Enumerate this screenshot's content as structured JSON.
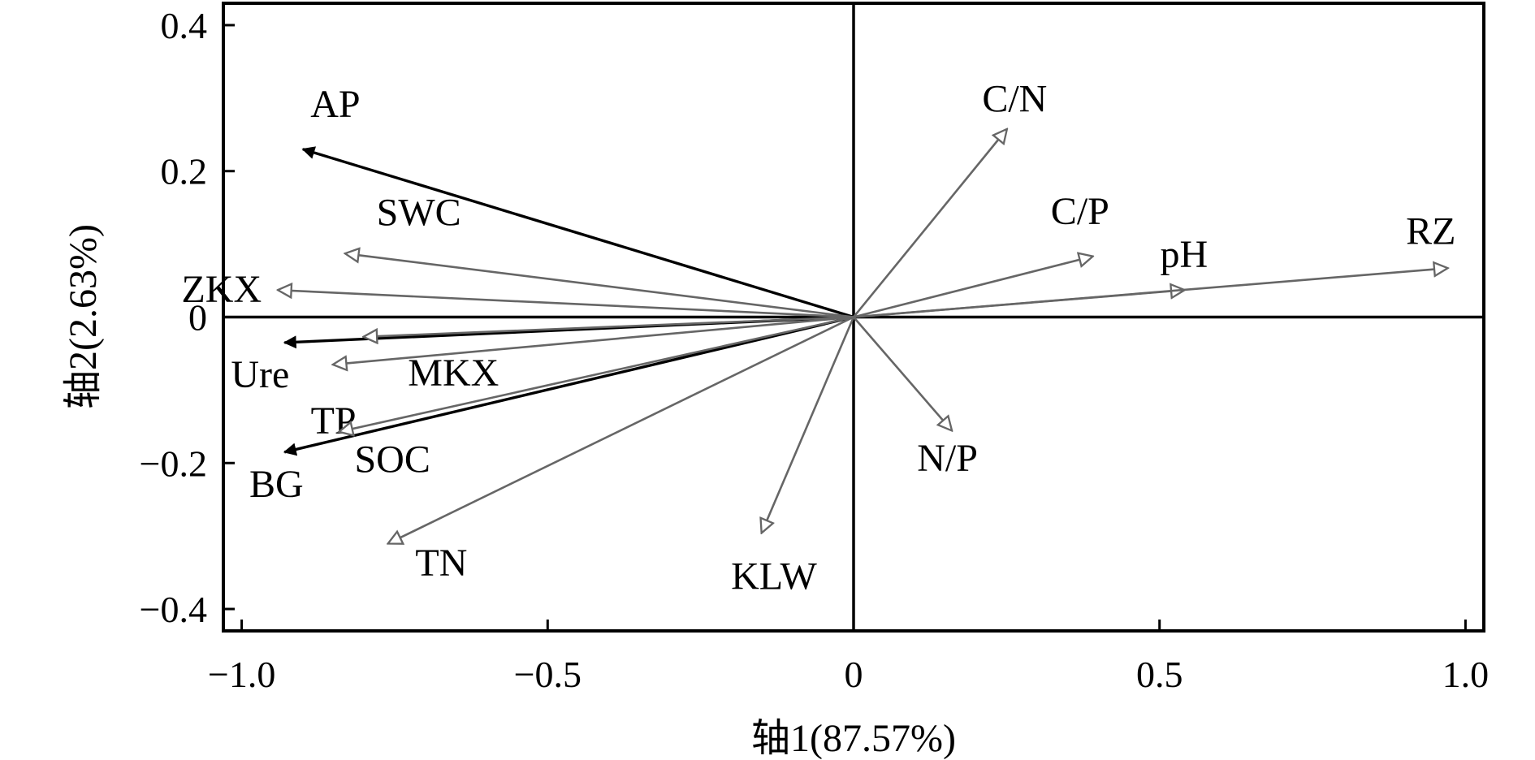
{
  "chart_data": {
    "type": "scatter",
    "subtype": "ordination-biplot-vectors",
    "xlabel": "轴1(87.57%)",
    "ylabel": "轴2(2.63%)",
    "xlim": [
      -1.03,
      1.03
    ],
    "ylim": [
      -0.43,
      0.43
    ],
    "x_ticks": [
      {
        "value": -1.0,
        "label": "−1.0"
      },
      {
        "value": -0.5,
        "label": "−0.5"
      },
      {
        "value": 0,
        "label": "0"
      },
      {
        "value": 0.5,
        "label": "0.5"
      },
      {
        "value": 1.0,
        "label": "1.0"
      }
    ],
    "y_ticks": [
      {
        "value": 0.4,
        "label": "0.4"
      },
      {
        "value": 0.2,
        "label": "0.2"
      },
      {
        "value": 0,
        "label": "0"
      },
      {
        "value": -0.2,
        "label": "−0.2"
      },
      {
        "value": -0.4,
        "label": "−0.4"
      }
    ],
    "grid": false,
    "colors": {
      "explanatory": "#000000",
      "response": "#666666"
    },
    "vectors": [
      {
        "name": "AP",
        "x": -0.9,
        "y": 0.23,
        "group": "explanatory"
      },
      {
        "name": "Ure",
        "x": -0.93,
        "y": -0.035,
        "group": "explanatory"
      },
      {
        "name": "BG",
        "x": -0.93,
        "y": -0.185,
        "group": "explanatory"
      },
      {
        "name": "SWC",
        "x": -0.83,
        "y": 0.087,
        "group": "response"
      },
      {
        "name": "ZKX",
        "x": -0.94,
        "y": 0.037,
        "group": "response"
      },
      {
        "name": "MKX",
        "x": -0.8,
        "y": -0.027,
        "group": "response"
      },
      {
        "name": "TP",
        "x": -0.85,
        "y": -0.065,
        "group": "response"
      },
      {
        "name": "SOC",
        "x": -0.84,
        "y": -0.157,
        "group": "response"
      },
      {
        "name": "TN",
        "x": -0.76,
        "y": -0.31,
        "group": "response"
      },
      {
        "name": "KLW",
        "x": -0.15,
        "y": -0.295,
        "group": "response"
      },
      {
        "name": "N/P",
        "x": 0.16,
        "y": -0.155,
        "group": "response"
      },
      {
        "name": "C/N",
        "x": 0.25,
        "y": 0.257,
        "group": "response"
      },
      {
        "name": "C/P",
        "x": 0.39,
        "y": 0.083,
        "group": "response"
      },
      {
        "name": "pH",
        "x": 0.54,
        "y": 0.037,
        "group": "response"
      },
      {
        "name": "RZ",
        "x": 0.97,
        "y": 0.067,
        "group": "response"
      }
    ]
  }
}
